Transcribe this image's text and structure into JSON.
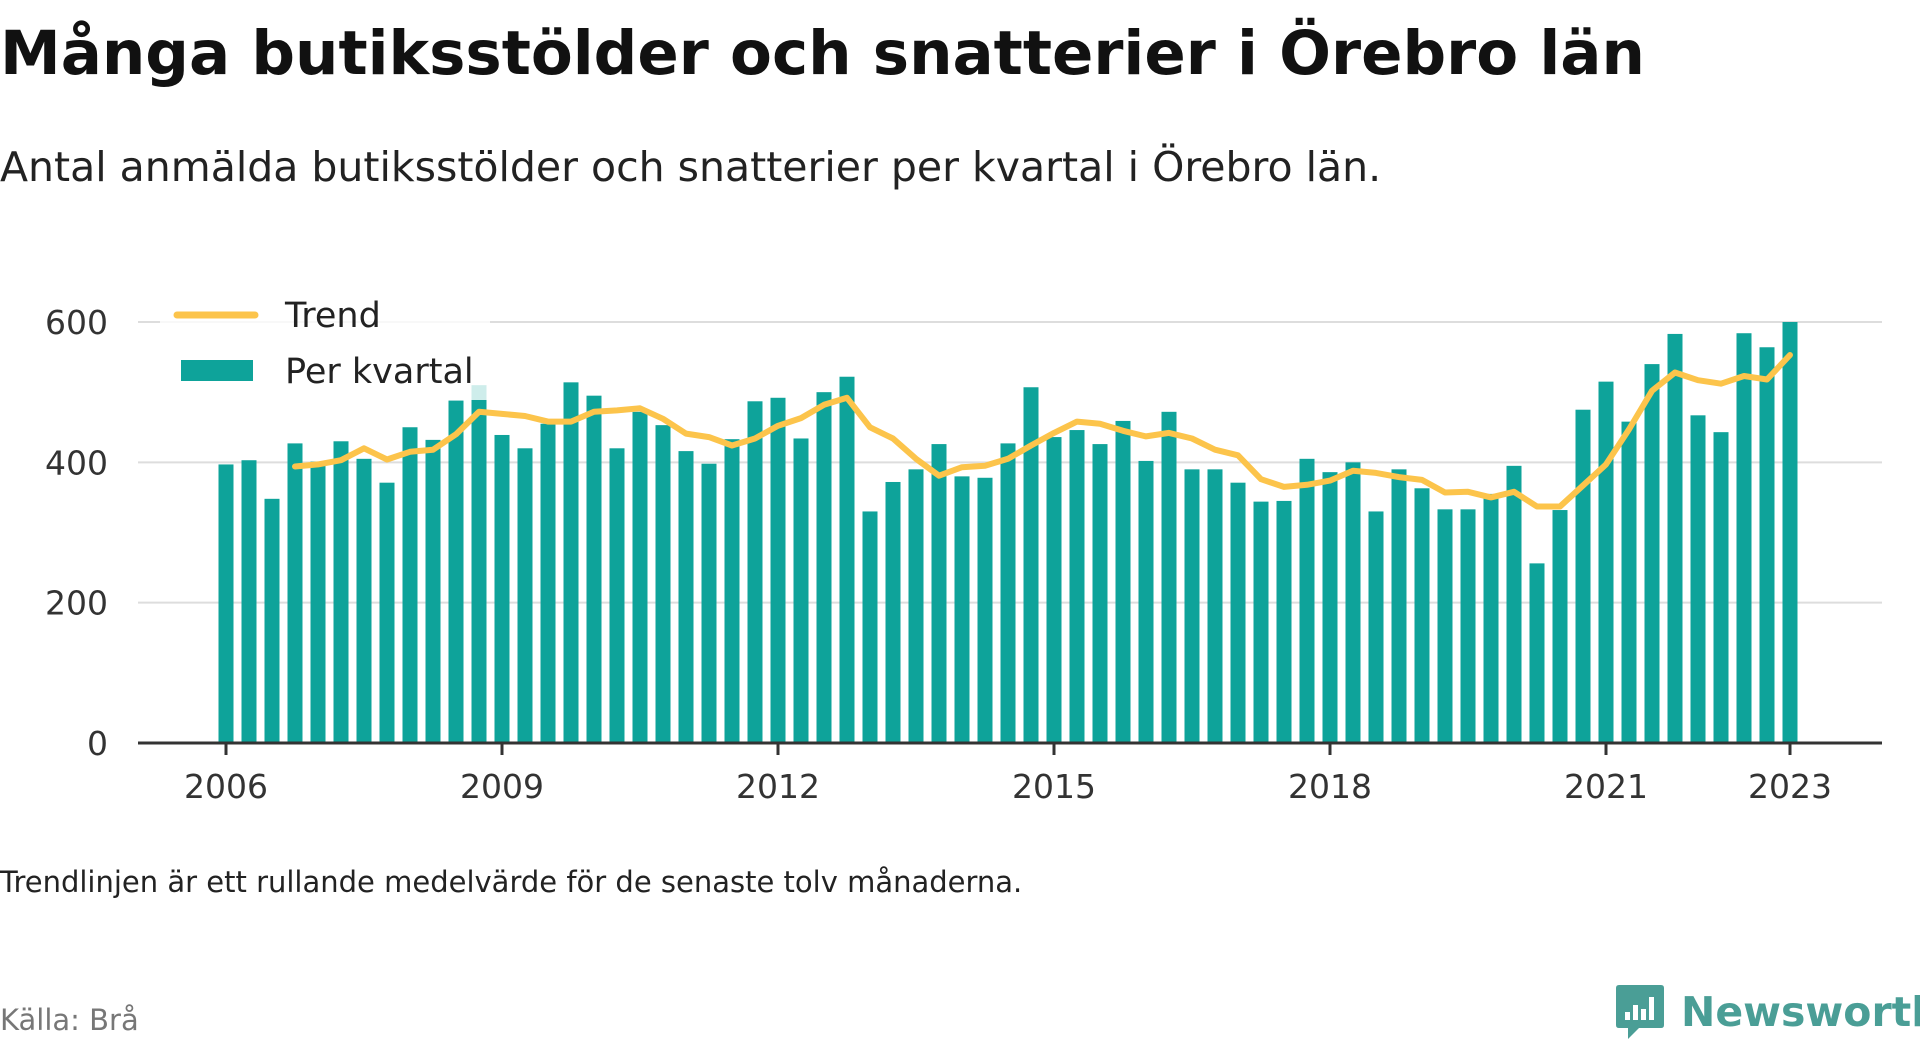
{
  "title": "Många butiksstölder och snatterier i Örebro län",
  "subtitle": "Antal anmälda butiksstölder och snatterier per kvartal i Örebro län.",
  "footnote": "Trendlinjen är ett rullande medelvärde för de senaste tolv månaderna.",
  "source": "Källa: Brå",
  "brand": {
    "name": "Newsworthy",
    "color": "#4a9e96",
    "icon": "bar-chart-logo-icon"
  },
  "colors": {
    "bar": "#0ea39a",
    "trend": "#fcc44b",
    "grid": "#dddddd",
    "axis": "#333333"
  },
  "chart_data": {
    "type": "bar",
    "title": "Många butiksstölder och snatterier i Örebro län",
    "subtitle": "Antal anmälda butiksstölder och snatterier per kvartal i Örebro län.",
    "xlabel": "",
    "ylabel": "",
    "ylim": [
      0,
      600
    ],
    "yticks": [
      0,
      200,
      400,
      600
    ],
    "yticklabels": [
      "0",
      "200",
      "400",
      "600"
    ],
    "xticks": [
      "2006",
      "2009",
      "2012",
      "2015",
      "2018",
      "2021",
      "2023"
    ],
    "grid": true,
    "legend_position": "top-left",
    "categories": [
      "2006 Q1",
      "2006 Q2",
      "2006 Q3",
      "2006 Q4",
      "2007 Q1",
      "2007 Q2",
      "2007 Q3",
      "2007 Q4",
      "2008 Q1",
      "2008 Q2",
      "2008 Q3",
      "2008 Q4",
      "2009 Q1",
      "2009 Q2",
      "2009 Q3",
      "2009 Q4",
      "2010 Q1",
      "2010 Q2",
      "2010 Q3",
      "2010 Q4",
      "2011 Q1",
      "2011 Q2",
      "2011 Q3",
      "2011 Q4",
      "2012 Q1",
      "2012 Q2",
      "2012 Q3",
      "2012 Q4",
      "2013 Q1",
      "2013 Q2",
      "2013 Q3",
      "2013 Q4",
      "2014 Q1",
      "2014 Q2",
      "2014 Q3",
      "2014 Q4",
      "2015 Q1",
      "2015 Q2",
      "2015 Q3",
      "2015 Q4",
      "2016 Q1",
      "2016 Q2",
      "2016 Q3",
      "2016 Q4",
      "2017 Q1",
      "2017 Q2",
      "2017 Q3",
      "2017 Q4",
      "2018 Q1",
      "2018 Q2",
      "2018 Q3",
      "2018 Q4",
      "2019 Q1",
      "2019 Q2",
      "2019 Q3",
      "2019 Q4",
      "2020 Q1",
      "2020 Q2",
      "2020 Q3",
      "2020 Q4",
      "2021 Q1",
      "2021 Q2",
      "2021 Q3",
      "2021 Q4",
      "2022 Q1",
      "2022 Q2",
      "2022 Q3",
      "2022 Q4",
      "2023 Q1"
    ],
    "series": [
      {
        "name": "Per kvartal",
        "type": "bar",
        "values": [
          397,
          403,
          348,
          427,
          401,
          430,
          405,
          371,
          450,
          432,
          488,
          510,
          439,
          420,
          455,
          514,
          495,
          420,
          472,
          453,
          416,
          398,
          433,
          487,
          492,
          434,
          500,
          522,
          330,
          372,
          390,
          426,
          380,
          378,
          427,
          507,
          436,
          446,
          426,
          459,
          402,
          472,
          390,
          390,
          371,
          344,
          345,
          405,
          386,
          400,
          330,
          390,
          363,
          333,
          333,
          355,
          395,
          256,
          332,
          475,
          515,
          458,
          540,
          583,
          467,
          443,
          584,
          564,
          600
        ]
      },
      {
        "name": "Trend",
        "type": "line",
        "values": [
          null,
          null,
          null,
          394,
          397,
          403,
          420,
          404,
          415,
          418,
          440,
          472,
          469,
          466,
          458,
          458,
          472,
          474,
          477,
          462,
          441,
          436,
          424,
          434,
          452,
          463,
          482,
          492,
          450,
          434,
          405,
          381,
          393,
          395,
          405,
          424,
          442,
          458,
          455,
          445,
          437,
          442,
          434,
          418,
          410,
          376,
          365,
          368,
          374,
          388,
          385,
          379,
          375,
          357,
          358,
          350,
          358,
          337,
          337,
          367,
          397,
          447,
          502,
          528,
          517,
          512,
          523,
          518,
          553
        ]
      }
    ]
  }
}
